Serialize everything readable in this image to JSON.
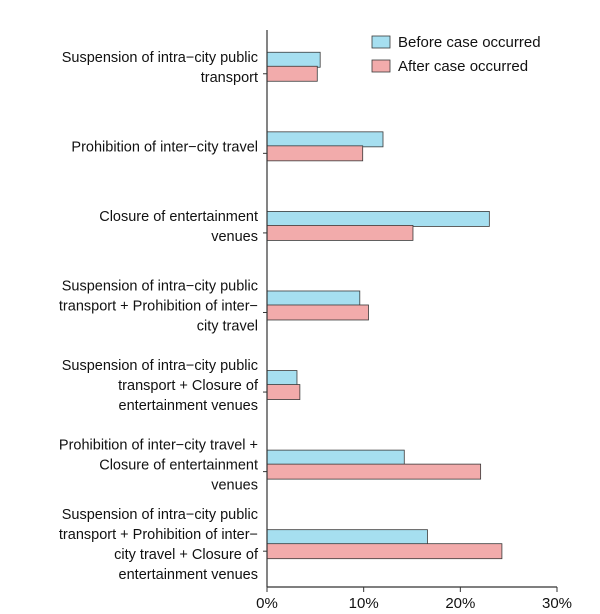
{
  "chart_data": {
    "type": "bar",
    "orientation": "horizontal",
    "title": "",
    "xlabel": "",
    "ylabel": "",
    "xlim": [
      0,
      30
    ],
    "x_ticks": [
      {
        "value": 0,
        "label": "0%"
      },
      {
        "value": 10,
        "label": "10%"
      },
      {
        "value": 20,
        "label": "20%"
      },
      {
        "value": 30,
        "label": "30%"
      }
    ],
    "grid": false,
    "legend_position": "top-right",
    "categories": [
      {
        "label": "Suspension of intra−city public transport",
        "lines": [
          "Suspension of intra−city public",
          "transport"
        ]
      },
      {
        "label": "Prohibition of inter−city travel",
        "lines": [
          "Prohibition of inter−city travel"
        ]
      },
      {
        "label": "Closure of entertainment venues",
        "lines": [
          "Closure of entertainment",
          "venues"
        ]
      },
      {
        "label": "Suspension of intra−city public transport + Prohibition of inter−city travel",
        "lines": [
          "Suspension of intra−city public",
          "transport + Prohibition of inter−",
          "city travel"
        ]
      },
      {
        "label": "Suspension of intra−city public transport + Closure of entertainment venues",
        "lines": [
          "Suspension of intra−city public",
          "transport + Closure of",
          "entertainment venues"
        ]
      },
      {
        "label": "Prohibition of inter−city travel + Closure of entertainment venues",
        "lines": [
          "Prohibition of inter−city travel +",
          "Closure of entertainment",
          "venues"
        ]
      },
      {
        "label": "Suspension of intra−city public transport + Prohibition of inter−city travel + Closure of entertainment venues",
        "lines": [
          "Suspension of intra−city public",
          "transport + Prohibition of inter−",
          "city travel + Closure of",
          "entertainment venues"
        ]
      }
    ],
    "series": [
      {
        "name": "Before case occurred",
        "color": "#a6dff0",
        "values": [
          5.5,
          12.0,
          23.0,
          9.6,
          3.1,
          14.2,
          16.6
        ]
      },
      {
        "name": "After case occurred",
        "color": "#f2abab",
        "values": [
          5.2,
          9.9,
          15.1,
          10.5,
          3.4,
          22.1,
          24.3
        ]
      }
    ]
  }
}
